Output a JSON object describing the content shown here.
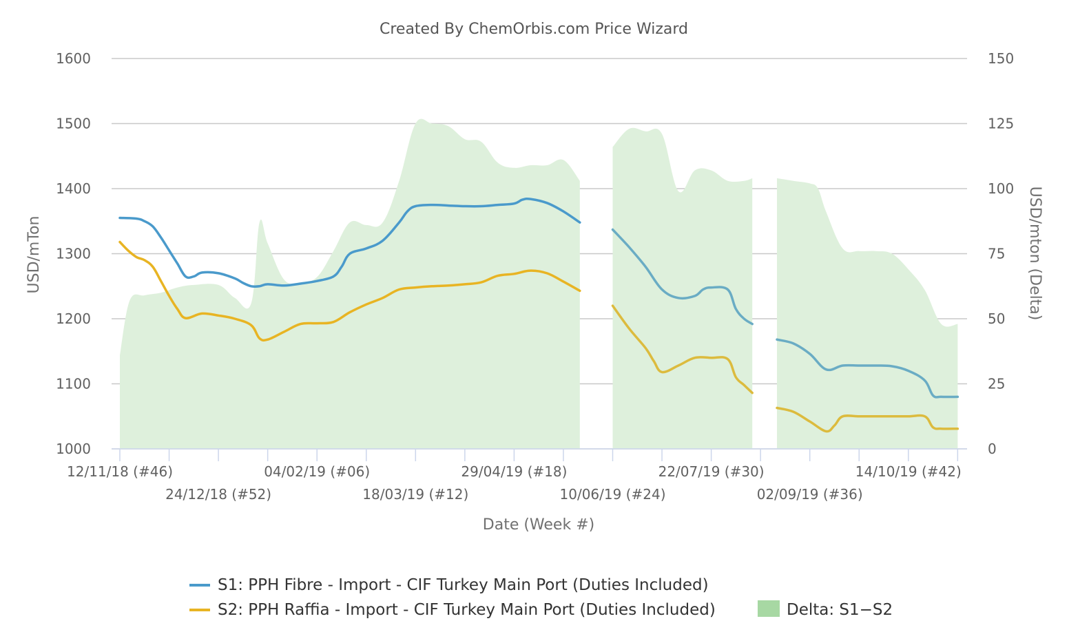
{
  "chart_data": {
    "type": "line",
    "title": "Created By ChemOrbis.com Price Wizard",
    "xlabel": "Date (Week #)",
    "ylabel": "USD/mTon",
    "y2label": "USD/mton (Delta)",
    "ylim": [
      1000,
      1600
    ],
    "y2lim": [
      0,
      150
    ],
    "yticks": [
      1000,
      1100,
      1200,
      1300,
      1400,
      1500,
      1600
    ],
    "y2ticks": [
      0,
      25,
      50,
      75,
      100,
      125,
      150
    ],
    "grid": true,
    "legend_position": "bottom",
    "x_tick_labels": [
      {
        "week": 0,
        "label": "12/11/18 (#46)",
        "row": 1
      },
      {
        "week": 6,
        "label": "24/12/18 (#52)",
        "row": 2
      },
      {
        "week": 12,
        "label": "04/02/19 (#06)",
        "row": 1
      },
      {
        "week": 18,
        "label": "18/03/19 (#12)",
        "row": 2
      },
      {
        "week": 24,
        "label": "29/04/19 (#18)",
        "row": 1
      },
      {
        "week": 30,
        "label": "10/06/19 (#24)",
        "row": 2
      },
      {
        "week": 36,
        "label": "22/07/19 (#30)",
        "row": 1
      },
      {
        "week": 42,
        "label": "02/09/19 (#36)",
        "row": 2
      },
      {
        "week": 48,
        "label": "14/10/19 (#42)",
        "row": 1
      }
    ],
    "x_minor_ticks": [
      0,
      3,
      6,
      9,
      12,
      15,
      18,
      21,
      24,
      27,
      30,
      33,
      36,
      39,
      42,
      45,
      48,
      51
    ],
    "x_range": [
      -1,
      52.5
    ],
    "series": [
      {
        "name": "S1: PPH Fibre - Import - CIF Turkey Main Port (Duties Included)",
        "axis": "left",
        "color": "#4a9acb",
        "data": [
          [
            0,
            1355
          ],
          [
            1,
            1354
          ],
          [
            1.5,
            1350
          ],
          [
            2,
            1342
          ],
          [
            2.5,
            1325
          ],
          [
            3,
            1305
          ],
          [
            3.5,
            1285
          ],
          [
            4,
            1265
          ],
          [
            4.5,
            1265
          ],
          [
            5,
            1271
          ],
          [
            6,
            1270
          ],
          [
            7,
            1262
          ],
          [
            7.5,
            1255
          ],
          [
            8,
            1250
          ],
          [
            8.5,
            1250
          ],
          [
            9,
            1253
          ],
          [
            10,
            1251
          ],
          [
            11,
            1254
          ],
          [
            12,
            1258
          ],
          [
            13,
            1265
          ],
          [
            13.5,
            1280
          ],
          [
            14,
            1300
          ],
          [
            15,
            1308
          ],
          [
            16,
            1320
          ],
          [
            17,
            1348
          ],
          [
            17.5,
            1365
          ],
          [
            18,
            1373
          ],
          [
            19,
            1375
          ],
          [
            20,
            1374
          ],
          [
            21,
            1373
          ],
          [
            22,
            1373
          ],
          [
            23,
            1375
          ],
          [
            24,
            1377
          ],
          [
            24.5,
            1383
          ],
          [
            25,
            1384
          ],
          [
            26,
            1378
          ],
          [
            27,
            1365
          ],
          [
            28,
            1348
          ]
        ],
        "segments": [
          [
            0,
            28
          ],
          [
            30,
            38
          ],
          [
            40,
            51
          ]
        ],
        "data2": [
          [
            30,
            1337
          ],
          [
            31,
            1310
          ],
          [
            32,
            1280
          ],
          [
            33,
            1245
          ],
          [
            34,
            1232
          ],
          [
            35,
            1235
          ],
          [
            35.5,
            1245
          ],
          [
            36,
            1248
          ],
          [
            37,
            1245
          ],
          [
            37.5,
            1215
          ],
          [
            38,
            1200
          ],
          [
            38.5,
            1192
          ]
        ],
        "data3": [
          [
            40,
            1168
          ],
          [
            41,
            1162
          ],
          [
            42,
            1146
          ],
          [
            43,
            1122
          ],
          [
            44,
            1128
          ],
          [
            45,
            1128
          ],
          [
            46,
            1128
          ],
          [
            47,
            1127
          ],
          [
            48,
            1120
          ],
          [
            49,
            1105
          ],
          [
            49.5,
            1082
          ],
          [
            50,
            1080
          ],
          [
            51,
            1080
          ]
        ]
      },
      {
        "name": "S2: PPH Raffia - Import - CIF Turkey Main Port (Duties Included)",
        "axis": "left",
        "color": "#e8b423",
        "data": [
          [
            0,
            1318
          ],
          [
            0.5,
            1305
          ],
          [
            1,
            1295
          ],
          [
            1.5,
            1290
          ],
          [
            2,
            1280
          ],
          [
            2.5,
            1258
          ],
          [
            3,
            1235
          ],
          [
            3.5,
            1215
          ],
          [
            4,
            1201
          ],
          [
            5,
            1208
          ],
          [
            6,
            1205
          ],
          [
            7,
            1200
          ],
          [
            8,
            1190
          ],
          [
            8.5,
            1170
          ],
          [
            9,
            1168
          ],
          [
            10,
            1180
          ],
          [
            11,
            1192
          ],
          [
            12,
            1193
          ],
          [
            13,
            1195
          ],
          [
            14,
            1210
          ],
          [
            15,
            1222
          ],
          [
            16,
            1232
          ],
          [
            17,
            1245
          ],
          [
            18,
            1248
          ],
          [
            19,
            1250
          ],
          [
            20,
            1251
          ],
          [
            21,
            1253
          ],
          [
            22,
            1256
          ],
          [
            23,
            1266
          ],
          [
            24,
            1269
          ],
          [
            25,
            1274
          ],
          [
            26,
            1270
          ],
          [
            27,
            1257
          ],
          [
            28,
            1243
          ]
        ],
        "data2": [
          [
            30,
            1220
          ],
          [
            31,
            1185
          ],
          [
            32,
            1155
          ],
          [
            32.5,
            1135
          ],
          [
            33,
            1118
          ],
          [
            34,
            1128
          ],
          [
            35,
            1140
          ],
          [
            36,
            1140
          ],
          [
            37,
            1138
          ],
          [
            37.5,
            1110
          ],
          [
            38,
            1098
          ],
          [
            38.5,
            1086
          ]
        ],
        "data3": [
          [
            40,
            1063
          ],
          [
            41,
            1057
          ],
          [
            42,
            1042
          ],
          [
            43,
            1027
          ],
          [
            43.5,
            1036
          ],
          [
            44,
            1050
          ],
          [
            45,
            1050
          ],
          [
            46,
            1050
          ],
          [
            47,
            1050
          ],
          [
            48,
            1050
          ],
          [
            49,
            1050
          ],
          [
            49.5,
            1033
          ],
          [
            50,
            1031
          ],
          [
            51,
            1031
          ]
        ]
      },
      {
        "name": "Delta: S1−S2",
        "axis": "right",
        "type": "area",
        "color": "#a7d8a3",
        "fill_color": "#def0dc",
        "data": [
          [
            0,
            36
          ],
          [
            0.6,
            57
          ],
          [
            1.5,
            59
          ],
          [
            2.5,
            60
          ],
          [
            3.5,
            62
          ],
          [
            4.5,
            63
          ],
          [
            6,
            63
          ],
          [
            7,
            58
          ],
          [
            8,
            56
          ],
          [
            8.5,
            87
          ],
          [
            9,
            79
          ],
          [
            10,
            65
          ],
          [
            11,
            64
          ],
          [
            12,
            66
          ],
          [
            13,
            76
          ],
          [
            14,
            87
          ],
          [
            15,
            86
          ],
          [
            16,
            87
          ],
          [
            17,
            103
          ],
          [
            18,
            125
          ],
          [
            19,
            125
          ],
          [
            20,
            124
          ],
          [
            21,
            119
          ],
          [
            22,
            118
          ],
          [
            23,
            110
          ],
          [
            24,
            108
          ],
          [
            25,
            109
          ],
          [
            26,
            109
          ],
          [
            27,
            111
          ],
          [
            28,
            103
          ]
        ],
        "data2": [
          [
            30,
            116
          ],
          [
            31,
            123
          ],
          [
            32,
            122
          ],
          [
            33,
            121
          ],
          [
            34,
            99
          ],
          [
            35,
            107
          ],
          [
            36,
            107
          ],
          [
            37,
            103
          ],
          [
            38,
            103
          ],
          [
            38.5,
            104
          ]
        ],
        "data3": [
          [
            40,
            104
          ],
          [
            41,
            103
          ],
          [
            42,
            102
          ],
          [
            42.5,
            100
          ],
          [
            43,
            91
          ],
          [
            44,
            77
          ],
          [
            45,
            76
          ],
          [
            46,
            76
          ],
          [
            47,
            75
          ],
          [
            48,
            69
          ],
          [
            49,
            61
          ],
          [
            50,
            48
          ],
          [
            51,
            48
          ]
        ]
      }
    ]
  },
  "legend": {
    "items": [
      {
        "label": "S1: PPH Fibre - Import - CIF Turkey Main Port (Duties Included)",
        "color": "#4a9acb"
      },
      {
        "label": "S2: PPH Raffia - Import - CIF Turkey Main Port (Duties Included)",
        "color": "#e8b423"
      },
      {
        "label": "Delta: S1−S2",
        "color": "#a7d8a3"
      }
    ]
  }
}
